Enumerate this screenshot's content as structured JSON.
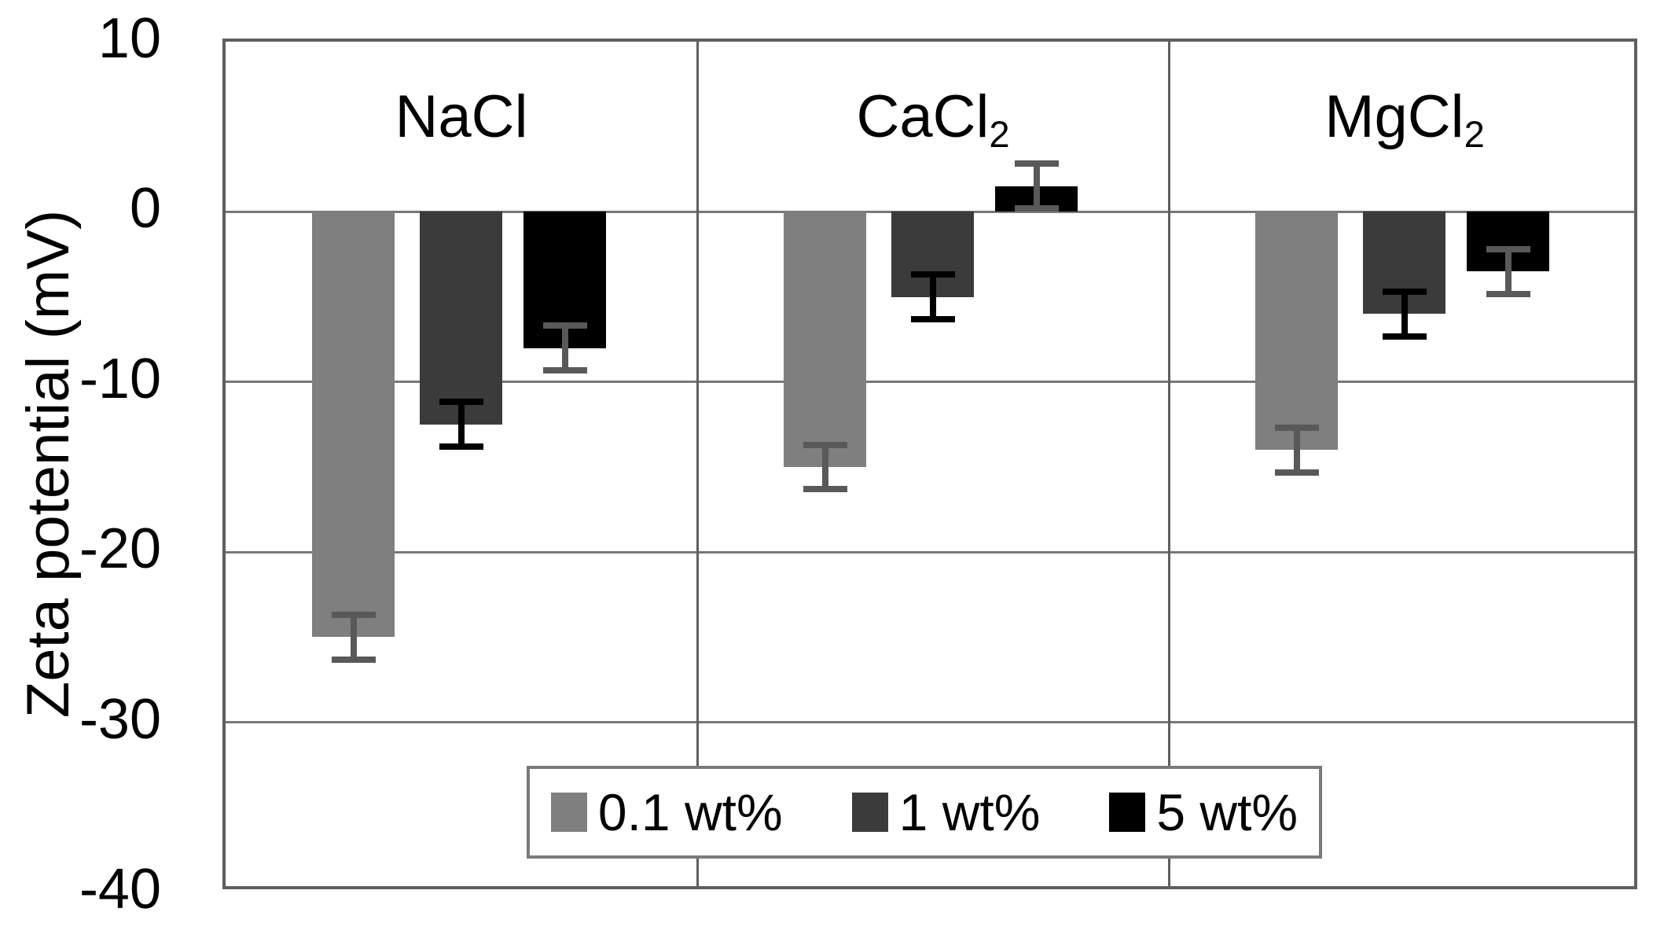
{
  "figure": {
    "background_color": "#ffffff",
    "frame_color": "#5f5f5f",
    "gridline_color": "#787878"
  },
  "chart_data": {
    "type": "bar",
    "title": "",
    "ylabel": "Zeta potential (mV)",
    "xlabel": "",
    "ylim": [
      -40,
      10
    ],
    "yticks": [
      10,
      0,
      -10,
      -20,
      -30,
      -40
    ],
    "ytick_labels": [
      "10",
      "0",
      "-10",
      "-20",
      "-30",
      "-40"
    ],
    "gridlines_mv": [
      0,
      -10,
      -20,
      -30
    ],
    "grid": "horizontal gridlines every 10 mV; vertical separator lines between salt panels",
    "legend_position": "bottom-center inside plot area",
    "categories": [
      {
        "label_base": "NaCl",
        "label_sub": ""
      },
      {
        "label_base": "CaCl",
        "label_sub": "2"
      },
      {
        "label_base": "MgCl",
        "label_sub": "2"
      }
    ],
    "series": [
      {
        "name": "0.1 wt%",
        "color": "#7f7f7f",
        "error_color": "#595959",
        "values": [
          -25.0,
          -15.0,
          -14.0
        ],
        "errors": [
          1.5,
          1.5,
          1.5
        ]
      },
      {
        "name": "1 wt%",
        "color": "#3b3b3b",
        "error_color": "#000000",
        "values": [
          -12.5,
          -5.0,
          -6.0
        ],
        "errors": [
          1.5,
          1.5,
          1.5
        ]
      },
      {
        "name": "5 wt%",
        "color": "#000000",
        "error_color": "#595959",
        "values": [
          -8.0,
          1.5,
          -3.5
        ],
        "errors": [
          1.5,
          1.5,
          1.5
        ]
      }
    ]
  }
}
